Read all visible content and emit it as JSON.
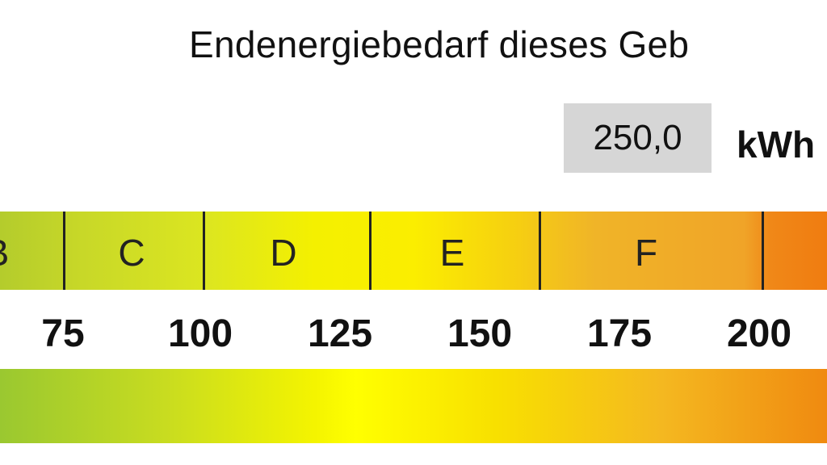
{
  "title": "Endenergiebedarf dieses Geb",
  "value": "250,0",
  "unit": "kWh",
  "classes": [
    {
      "label": "B",
      "center": 0
    },
    {
      "label": "C",
      "center": 163
    },
    {
      "label": "D",
      "center": 352
    },
    {
      "label": "E",
      "center": 560
    },
    {
      "label": "F",
      "center": 800
    }
  ],
  "ticks": [
    "75",
    "100",
    "125",
    "150",
    "175",
    "200"
  ],
  "colors": {
    "value_box": "#d6d6d6",
    "green": "#9ac830",
    "yellow": "#ffff00",
    "orange": "#f08a10"
  }
}
